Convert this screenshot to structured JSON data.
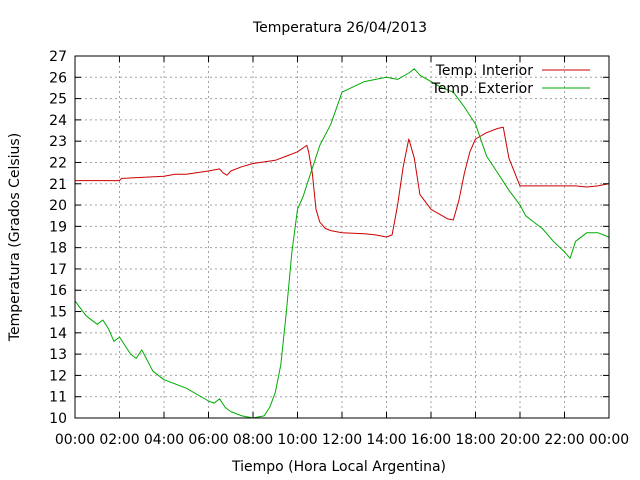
{
  "chart_data": {
    "type": "line",
    "title": "Temperatura 26/04/2013",
    "xlabel": "Tiempo (Hora Local Argentina)",
    "ylabel": "Temperatura (Grados Celsius)",
    "xlim": [
      "00:00",
      "24:00"
    ],
    "ylim": [
      10,
      27
    ],
    "x_ticks": [
      "00:00",
      "02:00",
      "04:00",
      "06:00",
      "08:00",
      "10:00",
      "12:00",
      "14:00",
      "16:00",
      "18:00",
      "20:00",
      "22:00",
      "00:00"
    ],
    "y_ticks": [
      10,
      11,
      12,
      13,
      14,
      15,
      16,
      17,
      18,
      19,
      20,
      21,
      22,
      23,
      24,
      25,
      26,
      27
    ],
    "grid": true,
    "legend_position": "top-right",
    "series": [
      {
        "name": "Temp. Interior",
        "color": "#cc0000",
        "x": [
          "00:00",
          "02:00",
          "02:05",
          "04:00",
          "04:30",
          "05:00",
          "06:00",
          "06:30",
          "06:40",
          "06:50",
          "07:00",
          "07:30",
          "08:00",
          "09:00",
          "09:30",
          "10:00",
          "10:25",
          "10:30",
          "10:40",
          "10:50",
          "11:00",
          "11:15",
          "11:30",
          "12:00",
          "13:00",
          "13:30",
          "14:00",
          "14:15",
          "14:30",
          "14:45",
          "15:00",
          "15:15",
          "15:30",
          "16:00",
          "16:30",
          "16:45",
          "17:00",
          "17:15",
          "17:30",
          "17:45",
          "18:00",
          "18:30",
          "19:00",
          "19:15",
          "19:30",
          "20:00",
          "21:00",
          "22:00",
          "22:30",
          "23:00",
          "23:30",
          "23:59"
        ],
        "values": [
          21.15,
          21.15,
          21.25,
          21.35,
          21.45,
          21.45,
          21.6,
          21.7,
          21.5,
          21.4,
          21.6,
          21.8,
          21.95,
          22.1,
          22.3,
          22.5,
          22.8,
          22.5,
          21.5,
          19.8,
          19.2,
          18.9,
          18.8,
          18.7,
          18.65,
          18.6,
          18.5,
          18.6,
          20.0,
          21.8,
          23.1,
          22.2,
          20.5,
          19.8,
          19.5,
          19.35,
          19.3,
          20.2,
          21.5,
          22.5,
          23.1,
          23.4,
          23.6,
          23.65,
          22.2,
          20.9,
          20.9,
          20.9,
          20.9,
          20.85,
          20.9,
          21.0
        ]
      },
      {
        "name": "Temp. Exterior",
        "color": "#00aa00",
        "x": [
          "00:00",
          "00:30",
          "01:00",
          "01:15",
          "01:30",
          "01:45",
          "02:00",
          "02:30",
          "02:45",
          "03:00",
          "03:30",
          "04:00",
          "05:00",
          "06:00",
          "06:15",
          "06:30",
          "06:45",
          "07:00",
          "07:30",
          "08:00",
          "08:30",
          "08:45",
          "09:00",
          "09:15",
          "09:30",
          "09:45",
          "10:00",
          "10:15",
          "10:30",
          "10:45",
          "11:00",
          "11:30",
          "12:00",
          "13:00",
          "14:00",
          "14:30",
          "15:00",
          "15:15",
          "15:30",
          "16:00",
          "16:30",
          "17:00",
          "17:30",
          "18:00",
          "18:30",
          "19:00",
          "19:30",
          "20:00",
          "20:15",
          "20:30",
          "21:00",
          "21:30",
          "22:00",
          "22:15",
          "22:30",
          "23:00",
          "23:30",
          "23:59"
        ],
        "values": [
          15.5,
          14.8,
          14.4,
          14.6,
          14.2,
          13.6,
          13.8,
          13.0,
          12.8,
          13.2,
          12.2,
          11.8,
          11.4,
          10.8,
          10.7,
          10.9,
          10.5,
          10.3,
          10.1,
          10.0,
          10.1,
          10.5,
          11.2,
          12.5,
          15.0,
          17.8,
          19.8,
          20.4,
          21.2,
          22.0,
          22.8,
          23.8,
          25.3,
          25.8,
          26.0,
          25.9,
          26.2,
          26.4,
          26.1,
          25.8,
          25.5,
          25.3,
          24.6,
          23.8,
          22.3,
          21.5,
          20.7,
          20.0,
          19.5,
          19.3,
          18.9,
          18.3,
          17.8,
          17.5,
          18.3,
          18.7,
          18.7,
          18.5
        ]
      }
    ]
  }
}
